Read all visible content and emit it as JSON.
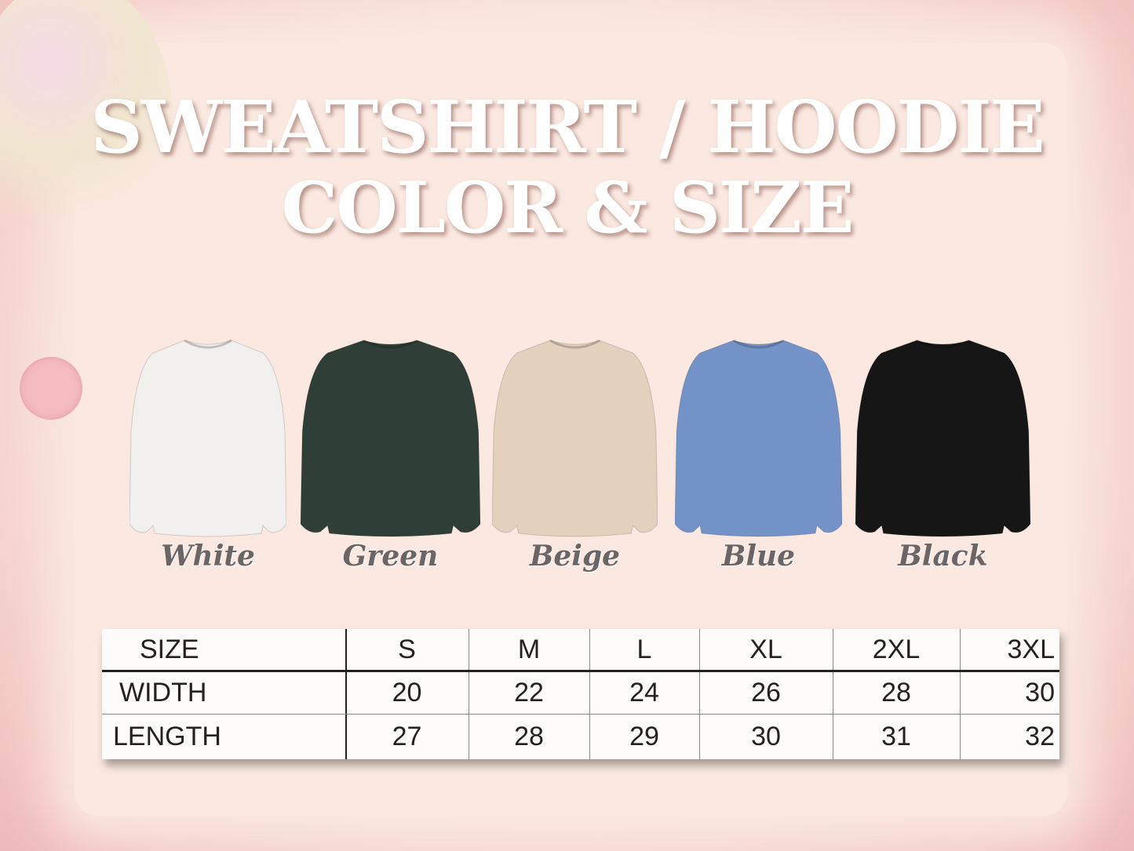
{
  "title": {
    "line1": "SWEATSHIRT / HOODIE",
    "line2": "COLOR & SIZE"
  },
  "colors": [
    {
      "label": "White",
      "hex": "#f1f0ee"
    },
    {
      "label": "Green",
      "hex": "#2f3e36"
    },
    {
      "label": "Beige",
      "hex": "#e3d1bd"
    },
    {
      "label": "Blue",
      "hex": "#7392c8"
    },
    {
      "label": "Black",
      "hex": "#161616"
    }
  ],
  "size_table": {
    "headers": [
      "SIZE",
      "S",
      "M",
      "L",
      "XL",
      "2XL",
      "3XL"
    ],
    "rows": [
      [
        "WIDTH",
        "20",
        "22",
        "24",
        "26",
        "28",
        "30"
      ],
      [
        "LENGTH",
        "27",
        "28",
        "29",
        "30",
        "31",
        "32"
      ]
    ]
  }
}
